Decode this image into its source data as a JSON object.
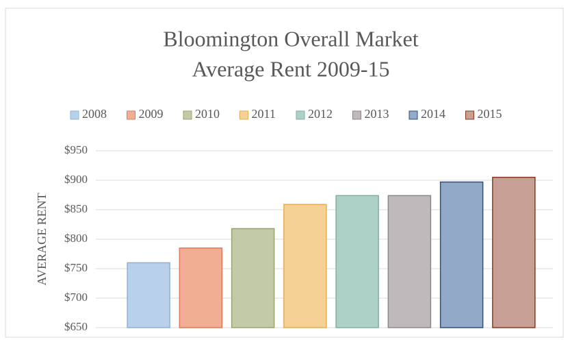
{
  "chart_data": {
    "type": "bar",
    "title": [
      "Bloomington Overall Market",
      "Average Rent 2009-15"
    ],
    "y_label": "AVERAGE RENT",
    "categories": [
      "2008",
      "2009",
      "2010",
      "2011",
      "2012",
      "2013",
      "2014",
      "2015"
    ],
    "values": [
      760,
      785,
      818,
      859,
      874,
      874,
      897,
      905
    ],
    "colors": [
      "#b8d0ea",
      "#f2ae93",
      "#c3caa8",
      "#f5d196",
      "#acd1c7",
      "#c0b9bb",
      "#93a9c8",
      "#c79f95"
    ],
    "edge_colors": [
      "#8fb0d9",
      "#e07a58",
      "#9aa56e",
      "#e3ad55",
      "#7fb0a3",
      "#8e8689",
      "#2e4f80",
      "#843c21"
    ],
    "ylim": [
      650,
      950
    ],
    "yticks": [
      {
        "value": 650,
        "label": "$650"
      },
      {
        "value": 700,
        "label": "$700"
      },
      {
        "value": 750,
        "label": "$750"
      },
      {
        "value": 800,
        "label": "$800"
      },
      {
        "value": 850,
        "label": "$850"
      },
      {
        "value": 900,
        "label": "$900"
      },
      {
        "value": 950,
        "label": "$950"
      }
    ],
    "grid": true
  }
}
